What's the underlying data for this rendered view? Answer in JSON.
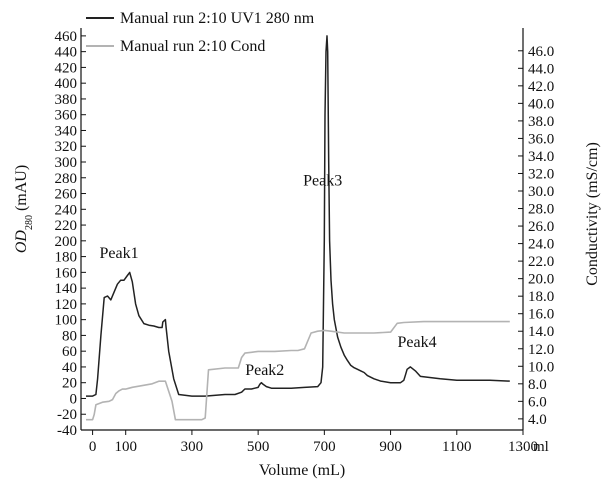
{
  "chart_data": {
    "type": "line",
    "xlabel": "Volume (mL)",
    "x_unit_label": "ml",
    "ylabel": "OD280 (mAU)",
    "ylabel_main": "OD",
    "ylabel_sub": "280",
    "ylabel_suffix": " (mAU)",
    "y2label": "Conductivity (mS/cm)",
    "xlim": [
      -35,
      1300
    ],
    "ylim": [
      -40,
      470
    ],
    "y2lim": [
      2.73,
      48.6
    ],
    "x_ticks": [
      0,
      100,
      300,
      500,
      700,
      900,
      1100,
      1300
    ],
    "y_ticks": [
      -40,
      -20,
      0,
      20,
      40,
      60,
      80,
      100,
      120,
      140,
      160,
      180,
      200,
      220,
      240,
      260,
      280,
      300,
      320,
      340,
      360,
      380,
      400,
      420,
      440,
      460
    ],
    "y2_ticks": [
      "4.0",
      "6.0",
      "8.0",
      "10.0",
      "12.0",
      "14.0",
      "16.0",
      "18.0",
      "20.0",
      "22.0",
      "24.0",
      "26.0",
      "28.0",
      "30.0",
      "32.0",
      "34.0",
      "36.0",
      "38.0",
      "40.0",
      "42.0",
      "44.0",
      "46.0"
    ],
    "legend_position": "top-left",
    "grid": false,
    "series": [
      {
        "name": "Manual run 2:10 UV1 280 nm",
        "color": "#222222",
        "axis": "left",
        "x": [
          -20,
          0,
          10,
          15,
          25,
          35,
          45,
          55,
          65,
          75,
          85,
          95,
          105,
          112,
          120,
          130,
          140,
          155,
          170,
          185,
          200,
          210,
          212,
          220,
          222,
          230,
          245,
          260,
          300,
          340,
          400,
          430,
          450,
          460,
          470,
          480,
          490,
          500,
          505,
          510,
          515,
          525,
          540,
          560,
          600,
          640,
          680,
          690,
          695,
          700,
          702,
          705,
          708,
          710,
          713,
          716,
          720,
          725,
          730,
          740,
          750,
          760,
          770,
          780,
          790,
          800,
          810,
          820,
          830,
          850,
          870,
          900,
          920,
          930,
          940,
          945,
          950,
          960,
          975,
          990,
          1050,
          1100,
          1150,
          1200,
          1260
        ],
        "y": [
          3,
          3,
          5,
          25,
          80,
          128,
          130,
          125,
          135,
          145,
          150,
          150,
          156,
          160,
          148,
          120,
          105,
          95,
          93,
          92,
          90,
          90,
          97,
          100,
          90,
          60,
          25,
          5,
          3,
          3,
          5,
          5,
          8,
          12,
          12,
          12,
          13,
          14,
          18,
          20,
          18,
          15,
          13,
          13,
          13,
          14,
          15,
          20,
          40,
          200,
          360,
          440,
          460,
          440,
          300,
          200,
          150,
          120,
          100,
          78,
          65,
          55,
          48,
          42,
          39,
          37,
          35,
          33,
          29,
          25,
          22,
          20,
          20,
          20,
          23,
          30,
          37,
          40,
          35,
          28,
          25,
          23,
          23,
          23,
          22
        ]
      },
      {
        "name": "Manual run 2:10 Cond",
        "color": "#b3b3b3",
        "axis": "right",
        "x": [
          -20,
          0,
          5,
          10,
          30,
          50,
          60,
          70,
          80,
          90,
          100,
          120,
          150,
          180,
          200,
          220,
          240,
          250,
          260,
          300,
          320,
          330,
          340,
          350,
          400,
          440,
          450,
          460,
          480,
          500,
          550,
          600,
          620,
          640,
          660,
          680,
          700,
          720,
          760,
          800,
          850,
          900,
          920,
          940,
          1000,
          1100,
          1200,
          1260
        ],
        "y": [
          3.9,
          3.9,
          4.5,
          5.6,
          5.9,
          6.0,
          6.2,
          6.9,
          7.2,
          7.4,
          7.4,
          7.6,
          7.8,
          8.0,
          8.3,
          8.3,
          6.0,
          3.9,
          3.9,
          3.9,
          3.9,
          3.9,
          4.1,
          9.6,
          9.8,
          9.8,
          11.0,
          11.5,
          11.6,
          11.7,
          11.7,
          11.8,
          11.8,
          12.0,
          13.8,
          14.0,
          14.1,
          14.0,
          13.8,
          13.8,
          13.8,
          13.9,
          14.9,
          15.0,
          15.1,
          15.1,
          15.1,
          15.1
        ]
      }
    ],
    "annotations": [
      {
        "text": "Peak1",
        "x": 80,
        "y": 178
      },
      {
        "text": "Peak2",
        "x": 520,
        "y": 30
      },
      {
        "text": "Peak3",
        "x": 695,
        "y": 270
      },
      {
        "text": "Peak4",
        "x": 980,
        "y": 65
      }
    ]
  }
}
